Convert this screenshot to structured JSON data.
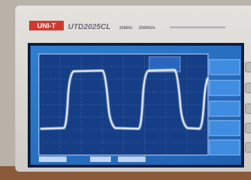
{
  "header": {
    "brand": "UNI-T",
    "model": "UTD2025CL",
    "bandwidth": "25MHz",
    "sample_rate": "250MS/s"
  }
}
